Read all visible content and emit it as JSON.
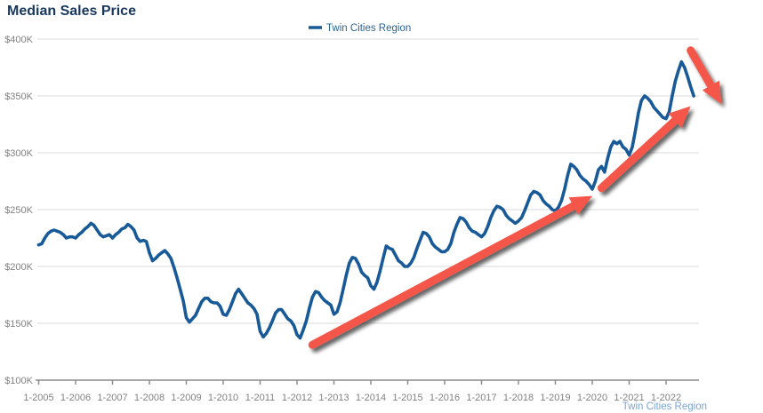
{
  "title": "Median Sales Price",
  "legend": {
    "label": "Twin Cities Region"
  },
  "footer": {
    "label": "Twin Cities Region"
  },
  "colors": {
    "title": "#17375d",
    "line": "#185a97",
    "legend_text": "#2a6496",
    "footer_text": "#7aa3d4",
    "axis_label": "#828282",
    "gridline": "#d9d9d9",
    "axis_line": "#8c8c8c",
    "arrow": "#f4564a"
  },
  "chart_data": {
    "type": "line",
    "title": "Median Sales Price",
    "ylim": [
      100,
      400
    ],
    "grid": "horizontal",
    "legend_position": "top-center",
    "y_ticks": [
      {
        "label": "$400K",
        "value": 400
      },
      {
        "label": "$350K",
        "value": 350
      },
      {
        "label": "$300K",
        "value": 300
      },
      {
        "label": "$250K",
        "value": 250
      },
      {
        "label": "$200K",
        "value": 200
      },
      {
        "label": "$150K",
        "value": 150
      },
      {
        "label": "$100K",
        "value": 100
      }
    ],
    "x_ticks": [
      "1-2005",
      "1-2006",
      "1-2007",
      "1-2008",
      "1-2009",
      "1-2010",
      "1-2011",
      "1-2012",
      "1-2013",
      "1-2014",
      "1-2015",
      "1-2016",
      "1-2017",
      "1-2018",
      "1-2019",
      "1-2020",
      "1-2021",
      "1-2022"
    ],
    "series": [
      {
        "name": "Twin Cities Region",
        "interval": "monthly",
        "start": "2005-01",
        "end": "2022-10",
        "unit": "USD thousands",
        "values": [
          219,
          220,
          225,
          229,
          231,
          232,
          231,
          230,
          228,
          225,
          226,
          226,
          225,
          228,
          230,
          233,
          235,
          238,
          236,
          232,
          228,
          226,
          227,
          228,
          225,
          228,
          230,
          233,
          234,
          237,
          235,
          232,
          225,
          222,
          223,
          222,
          212,
          205,
          207,
          210,
          212,
          214,
          211,
          207,
          199,
          190,
          180,
          170,
          155,
          151,
          154,
          157,
          163,
          169,
          172,
          172,
          169,
          168,
          168,
          165,
          158,
          157,
          162,
          169,
          176,
          180,
          176,
          172,
          168,
          166,
          163,
          158,
          143,
          138,
          141,
          146,
          152,
          159,
          162,
          162,
          158,
          154,
          152,
          148,
          140,
          137,
          144,
          152,
          163,
          173,
          178,
          177,
          173,
          170,
          168,
          166,
          158,
          160,
          168,
          180,
          192,
          203,
          208,
          207,
          202,
          195,
          192,
          190,
          183,
          180,
          186,
          196,
          207,
          218,
          216,
          215,
          210,
          205,
          203,
          200,
          200,
          203,
          208,
          216,
          223,
          230,
          229,
          226,
          220,
          217,
          215,
          213,
          213,
          215,
          220,
          230,
          237,
          243,
          242,
          239,
          234,
          231,
          230,
          228,
          226,
          229,
          235,
          243,
          249,
          253,
          252,
          250,
          245,
          242,
          240,
          238,
          240,
          243,
          249,
          256,
          263,
          266,
          265,
          263,
          258,
          255,
          253,
          250,
          249,
          252,
          258,
          268,
          280,
          290,
          288,
          285,
          280,
          277,
          275,
          272,
          268,
          275,
          285,
          288,
          283,
          295,
          305,
          310,
          308,
          310,
          305,
          303,
          298,
          305,
          319,
          335,
          346,
          350,
          348,
          345,
          340,
          337,
          334,
          331,
          330,
          336,
          350,
          363,
          372,
          380,
          375,
          367,
          358,
          350
        ]
      }
    ],
    "annotations": {
      "arrows": [
        {
          "name": "uptrend-arrow-1",
          "direction": "up-right",
          "from": {
            "year": 2012,
            "month": 6,
            "value": 131
          },
          "to": {
            "year": 2020,
            "month": 1,
            "value": 262
          }
        },
        {
          "name": "uptrend-arrow-2",
          "direction": "up-right",
          "from": {
            "year": 2020,
            "month": 4,
            "value": 269
          },
          "to": {
            "year": 2022,
            "month": 9,
            "value": 341
          }
        },
        {
          "name": "downtrend-arrow",
          "direction": "down-right",
          "from": {
            "year": 2022,
            "month": 9,
            "value": 390
          },
          "to": {
            "year": 2023,
            "month": 7,
            "value": 343
          }
        }
      ]
    }
  }
}
